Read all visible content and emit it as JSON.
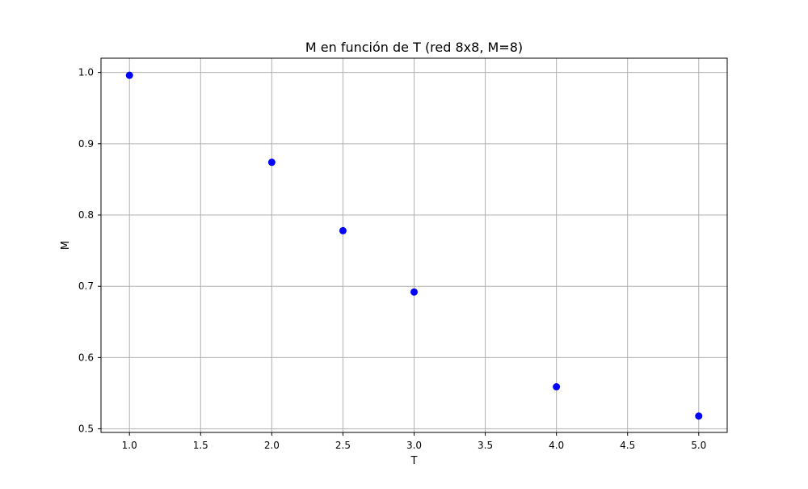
{
  "chart_data": {
    "type": "scatter",
    "title": "M en función de T (red 8x8, M=8)",
    "xlabel": "T",
    "ylabel": "M",
    "xlim": [
      0.8,
      5.2
    ],
    "ylim": [
      0.495,
      1.02
    ],
    "xticks": [
      1.0,
      1.5,
      2.0,
      2.5,
      3.0,
      3.5,
      4.0,
      4.5,
      5.0
    ],
    "xtick_labels": [
      "1.0",
      "1.5",
      "2.0",
      "2.5",
      "3.0",
      "3.5",
      "4.0",
      "4.5",
      "5.0"
    ],
    "yticks": [
      0.5,
      0.6,
      0.7,
      0.8,
      0.9,
      1.0
    ],
    "ytick_labels": [
      "0.5",
      "0.6",
      "0.7",
      "0.8",
      "0.9",
      "1.0"
    ],
    "grid": true,
    "legend": false,
    "series": [
      {
        "color": "#0000ff",
        "marker": "circle",
        "points": [
          {
            "x": 1.0,
            "y": 0.996
          },
          {
            "x": 2.0,
            "y": 0.874
          },
          {
            "x": 2.5,
            "y": 0.778
          },
          {
            "x": 3.0,
            "y": 0.692
          },
          {
            "x": 4.0,
            "y": 0.559
          },
          {
            "x": 5.0,
            "y": 0.518
          }
        ]
      }
    ]
  }
}
